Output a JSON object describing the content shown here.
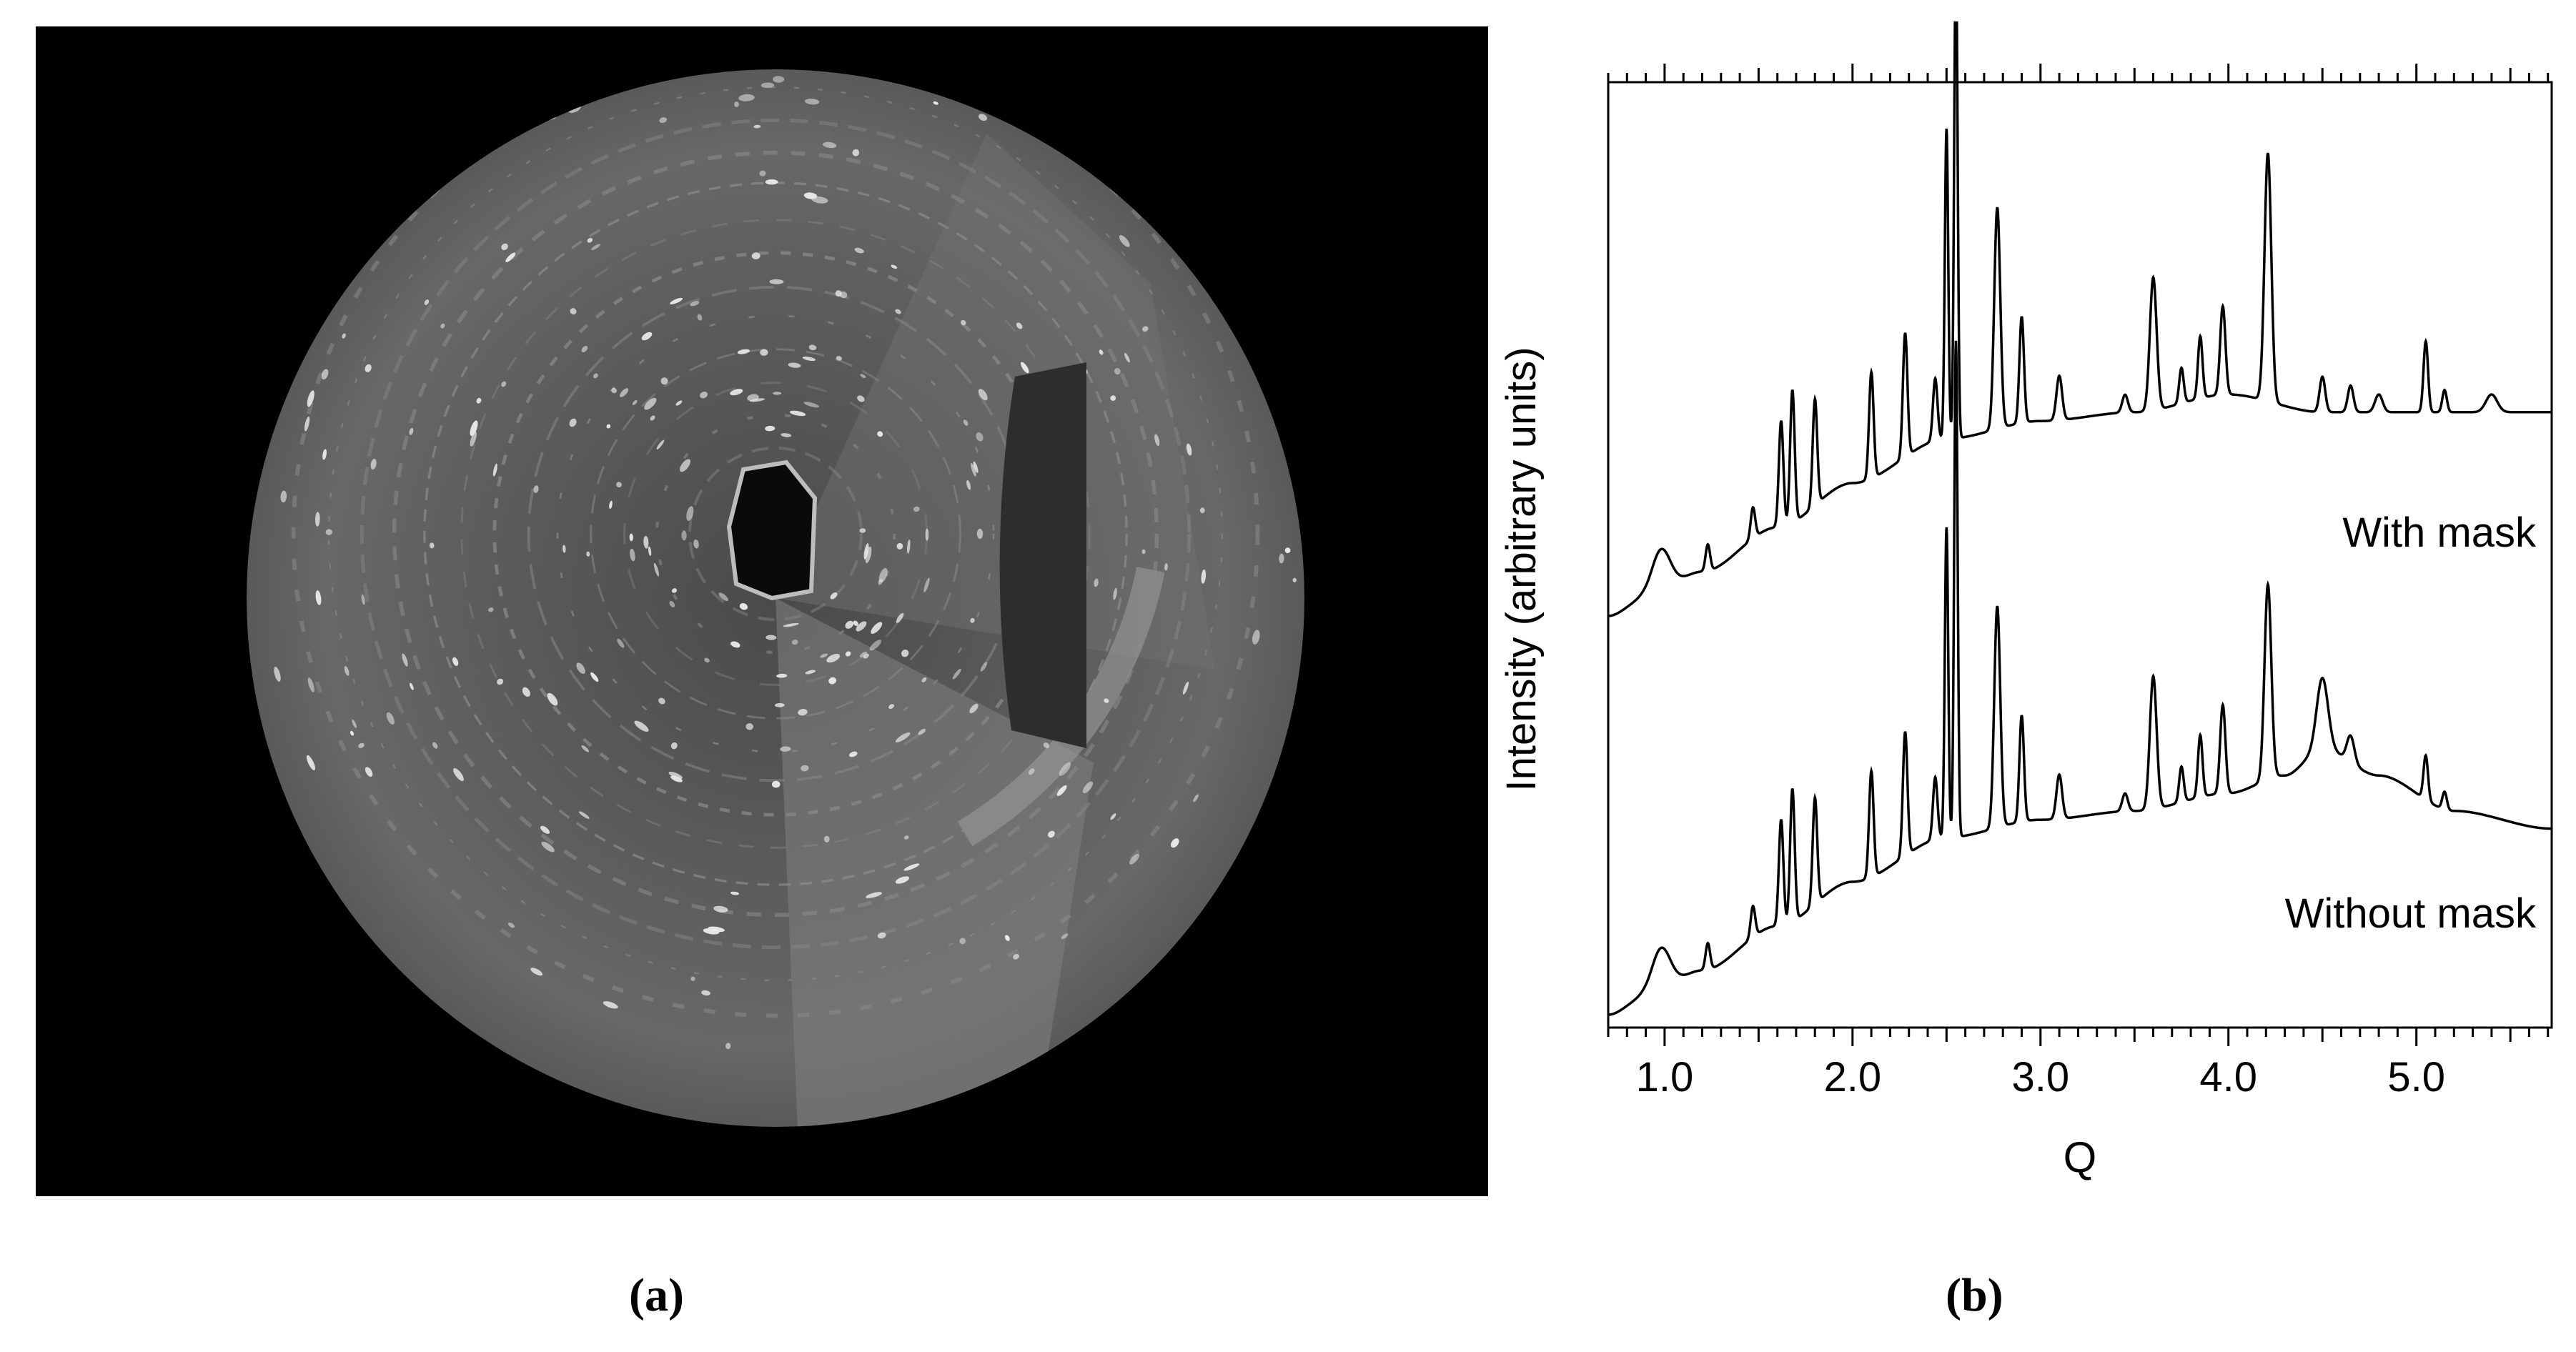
{
  "panel_a": {
    "caption": "(a)",
    "description_icon": "diffraction-image"
  },
  "panel_b": {
    "caption": "(b)"
  },
  "chart_data": {
    "type": "line",
    "xlabel": "Q",
    "ylabel": "Intensity (arbitrary units)",
    "xlim": [
      0.7,
      5.72
    ],
    "xticks": [
      "1.0",
      "2.0",
      "3.0",
      "4.0",
      "5.0"
    ],
    "xtick_values": [
      1.0,
      2.0,
      3.0,
      4.0,
      5.0
    ],
    "ylim": [
      0,
      1
    ],
    "grid": false,
    "color": "#000000",
    "series": [
      {
        "name": "With mask",
        "offset": 0.45,
        "baseline": [
          [
            0.7,
            0.0
          ],
          [
            0.9,
            0.02
          ],
          [
            1.2,
            0.05
          ],
          [
            1.6,
            0.1
          ],
          [
            2.0,
            0.15
          ],
          [
            2.5,
            0.2
          ],
          [
            3.0,
            0.22
          ],
          [
            3.5,
            0.23
          ],
          [
            4.0,
            0.25
          ],
          [
            4.5,
            0.23
          ],
          [
            5.0,
            0.23
          ],
          [
            5.72,
            0.23
          ]
        ],
        "peaks": [
          {
            "x": 0.98,
            "h": 0.05,
            "w": 0.05
          },
          {
            "x": 1.23,
            "h": 0.03,
            "w": 0.012
          },
          {
            "x": 1.47,
            "h": 0.035,
            "w": 0.012
          },
          {
            "x": 1.62,
            "h": 0.12,
            "w": 0.012
          },
          {
            "x": 1.68,
            "h": 0.15,
            "w": 0.012
          },
          {
            "x": 1.8,
            "h": 0.12,
            "w": 0.012
          },
          {
            "x": 2.1,
            "h": 0.12,
            "w": 0.012
          },
          {
            "x": 2.28,
            "h": 0.14,
            "w": 0.012
          },
          {
            "x": 2.44,
            "h": 0.07,
            "w": 0.012
          },
          {
            "x": 2.5,
            "h": 0.35,
            "w": 0.009
          },
          {
            "x": 2.55,
            "h": 0.56,
            "w": 0.009
          },
          {
            "x": 2.77,
            "h": 0.25,
            "w": 0.016
          },
          {
            "x": 2.9,
            "h": 0.12,
            "w": 0.012
          },
          {
            "x": 3.1,
            "h": 0.05,
            "w": 0.015
          },
          {
            "x": 3.45,
            "h": 0.02,
            "w": 0.015
          },
          {
            "x": 3.6,
            "h": 0.15,
            "w": 0.018
          },
          {
            "x": 3.75,
            "h": 0.04,
            "w": 0.012
          },
          {
            "x": 3.85,
            "h": 0.07,
            "w": 0.012
          },
          {
            "x": 3.97,
            "h": 0.1,
            "w": 0.014
          },
          {
            "x": 4.21,
            "h": 0.28,
            "w": 0.018
          },
          {
            "x": 4.5,
            "h": 0.04,
            "w": 0.015
          },
          {
            "x": 4.65,
            "h": 0.03,
            "w": 0.015
          },
          {
            "x": 4.8,
            "h": 0.02,
            "w": 0.02
          },
          {
            "x": 5.05,
            "h": 0.08,
            "w": 0.012
          },
          {
            "x": 5.15,
            "h": 0.025,
            "w": 0.012
          },
          {
            "x": 5.4,
            "h": 0.02,
            "w": 0.03
          }
        ]
      },
      {
        "name": "Without mask",
        "offset": 0.0,
        "baseline": [
          [
            0.7,
            0.0
          ],
          [
            0.9,
            0.02
          ],
          [
            1.2,
            0.05
          ],
          [
            1.6,
            0.1
          ],
          [
            2.0,
            0.15
          ],
          [
            2.5,
            0.2
          ],
          [
            3.0,
            0.22
          ],
          [
            3.5,
            0.23
          ],
          [
            4.0,
            0.25
          ],
          [
            4.3,
            0.27
          ],
          [
            4.5,
            0.3
          ],
          [
            4.8,
            0.27
          ],
          [
            5.2,
            0.23
          ],
          [
            5.72,
            0.21
          ]
        ],
        "peaks": [
          {
            "x": 0.98,
            "h": 0.05,
            "w": 0.05
          },
          {
            "x": 1.23,
            "h": 0.03,
            "w": 0.012
          },
          {
            "x": 1.47,
            "h": 0.035,
            "w": 0.012
          },
          {
            "x": 1.62,
            "h": 0.12,
            "w": 0.012
          },
          {
            "x": 1.68,
            "h": 0.15,
            "w": 0.012
          },
          {
            "x": 1.8,
            "h": 0.12,
            "w": 0.012
          },
          {
            "x": 2.1,
            "h": 0.12,
            "w": 0.012
          },
          {
            "x": 2.28,
            "h": 0.14,
            "w": 0.012
          },
          {
            "x": 2.44,
            "h": 0.07,
            "w": 0.012
          },
          {
            "x": 2.5,
            "h": 0.35,
            "w": 0.009
          },
          {
            "x": 2.55,
            "h": 0.56,
            "w": 0.009
          },
          {
            "x": 2.77,
            "h": 0.25,
            "w": 0.016
          },
          {
            "x": 2.9,
            "h": 0.12,
            "w": 0.012
          },
          {
            "x": 3.1,
            "h": 0.05,
            "w": 0.015
          },
          {
            "x": 3.45,
            "h": 0.02,
            "w": 0.015
          },
          {
            "x": 3.6,
            "h": 0.15,
            "w": 0.018
          },
          {
            "x": 3.75,
            "h": 0.04,
            "w": 0.012
          },
          {
            "x": 3.85,
            "h": 0.07,
            "w": 0.012
          },
          {
            "x": 3.97,
            "h": 0.1,
            "w": 0.014
          },
          {
            "x": 4.21,
            "h": 0.22,
            "w": 0.018
          },
          {
            "x": 4.5,
            "h": 0.08,
            "w": 0.03
          },
          {
            "x": 4.65,
            "h": 0.03,
            "w": 0.02
          },
          {
            "x": 5.05,
            "h": 0.05,
            "w": 0.012
          },
          {
            "x": 5.15,
            "h": 0.02,
            "w": 0.012
          }
        ]
      }
    ]
  }
}
